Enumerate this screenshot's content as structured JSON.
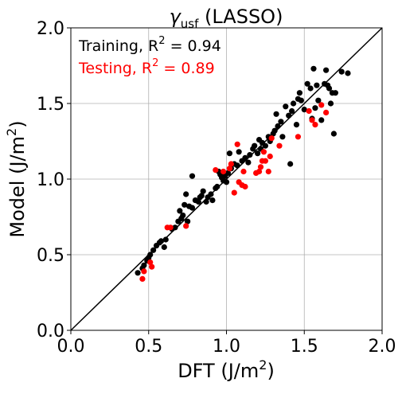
{
  "chart_data": {
    "type": "scatter",
    "title_main": "γ",
    "title_sub": "usf",
    "title_rest": " (LASSO)",
    "xlabel_main": "DFT (J/m",
    "xlabel_sup": "2",
    "xlabel_end": ")",
    "ylabel_main": "Model (J/m",
    "ylabel_sup": "2",
    "ylabel_end": ")",
    "xlim": [
      0.0,
      2.0
    ],
    "ylim": [
      0.0,
      2.0
    ],
    "xticks": [
      "0.0",
      "0.5",
      "1.0",
      "1.5",
      "2.0"
    ],
    "yticks": [
      "0.0",
      "0.5",
      "1.0",
      "1.5",
      "2.0"
    ],
    "grid": true,
    "legend_position": "top-left",
    "reference_line": "y=x",
    "series": [
      {
        "name_prefix": "Training, R",
        "name_sup": "2",
        "name_suffix": " = 0.94",
        "color": "#000000",
        "points": [
          [
            0.43,
            0.38
          ],
          [
            0.46,
            0.41
          ],
          [
            0.47,
            0.43
          ],
          [
            0.49,
            0.46
          ],
          [
            0.5,
            0.48
          ],
          [
            0.51,
            0.5
          ],
          [
            0.53,
            0.53
          ],
          [
            0.55,
            0.56
          ],
          [
            0.57,
            0.58
          ],
          [
            0.58,
            0.59
          ],
          [
            0.6,
            0.55
          ],
          [
            0.61,
            0.6
          ],
          [
            0.65,
            0.67
          ],
          [
            0.67,
            0.68
          ],
          [
            0.69,
            0.72
          ],
          [
            0.7,
            0.79
          ],
          [
            0.71,
            0.74
          ],
          [
            0.72,
            0.76
          ],
          [
            0.73,
            0.83
          ],
          [
            0.74,
            0.9
          ],
          [
            0.75,
            0.72
          ],
          [
            0.76,
            0.82
          ],
          [
            0.78,
            0.81
          ],
          [
            0.78,
            1.02
          ],
          [
            0.8,
            0.86
          ],
          [
            0.82,
            0.85
          ],
          [
            0.83,
            0.88
          ],
          [
            0.84,
            0.89
          ],
          [
            0.85,
            0.92
          ],
          [
            0.87,
            0.85
          ],
          [
            0.88,
            0.88
          ],
          [
            0.9,
            0.9
          ],
          [
            0.91,
            0.86
          ],
          [
            0.93,
            0.94
          ],
          [
            0.94,
            0.95
          ],
          [
            0.95,
            1.05
          ],
          [
            0.96,
            1.03
          ],
          [
            0.97,
            1.01
          ],
          [
            0.98,
            0.99
          ],
          [
            0.99,
            1.02
          ],
          [
            1.0,
            0.98
          ],
          [
            1.01,
            1.04
          ],
          [
            1.02,
            1.17
          ],
          [
            1.03,
            1.07
          ],
          [
            1.05,
            1.1
          ],
          [
            1.07,
            1.09
          ],
          [
            1.08,
            1.18
          ],
          [
            1.1,
            1.12
          ],
          [
            1.12,
            1.14
          ],
          [
            1.14,
            1.11
          ],
          [
            1.15,
            1.16
          ],
          [
            1.17,
            1.2
          ],
          [
            1.18,
            1.22
          ],
          [
            1.2,
            1.17
          ],
          [
            1.21,
            1.26
          ],
          [
            1.22,
            1.2
          ],
          [
            1.23,
            1.24
          ],
          [
            1.25,
            1.22
          ],
          [
            1.27,
            1.28
          ],
          [
            1.28,
            1.25
          ],
          [
            1.3,
            1.3
          ],
          [
            1.31,
            1.32
          ],
          [
            1.32,
            1.43
          ],
          [
            1.33,
            1.35
          ],
          [
            1.35,
            1.38
          ],
          [
            1.36,
            1.28
          ],
          [
            1.38,
            1.48
          ],
          [
            1.4,
            1.42
          ],
          [
            1.41,
            1.1
          ],
          [
            1.42,
            1.45
          ],
          [
            1.43,
            1.5
          ],
          [
            1.45,
            1.36
          ],
          [
            1.46,
            1.53
          ],
          [
            1.47,
            1.57
          ],
          [
            1.48,
            1.52
          ],
          [
            1.5,
            1.46
          ],
          [
            1.52,
            1.63
          ],
          [
            1.54,
            1.6
          ],
          [
            1.55,
            1.4
          ],
          [
            1.56,
            1.73
          ],
          [
            1.57,
            1.47
          ],
          [
            1.58,
            1.62
          ],
          [
            1.59,
            1.52
          ],
          [
            1.61,
            1.39
          ],
          [
            1.63,
            1.63
          ],
          [
            1.64,
            1.72
          ],
          [
            1.65,
            1.62
          ],
          [
            1.66,
            1.6
          ],
          [
            1.67,
            1.5
          ],
          [
            1.68,
            1.57
          ],
          [
            1.69,
            1.3
          ],
          [
            1.7,
            1.57
          ],
          [
            1.74,
            1.71
          ],
          [
            1.78,
            1.7
          ]
        ]
      },
      {
        "name_prefix": "Testing, R",
        "name_sup": "2",
        "name_suffix": " = 0.89",
        "color": "#ff0000",
        "points": [
          [
            0.46,
            0.34
          ],
          [
            0.47,
            0.39
          ],
          [
            0.51,
            0.45
          ],
          [
            0.52,
            0.42
          ],
          [
            0.62,
            0.68
          ],
          [
            0.64,
            0.68
          ],
          [
            0.74,
            0.69
          ],
          [
            0.93,
            1.06
          ],
          [
            0.98,
            1.05
          ],
          [
            1.02,
            1.07
          ],
          [
            1.03,
            1.1
          ],
          [
            1.05,
            0.91
          ],
          [
            1.07,
            1.23
          ],
          [
            1.08,
            0.98
          ],
          [
            1.1,
            0.96
          ],
          [
            1.11,
            1.05
          ],
          [
            1.12,
            0.95
          ],
          [
            1.19,
            1.04
          ],
          [
            1.21,
            1.05
          ],
          [
            1.22,
            1.08
          ],
          [
            1.23,
            1.12
          ],
          [
            1.24,
            1.18
          ],
          [
            1.25,
            1.12
          ],
          [
            1.27,
            1.05
          ],
          [
            1.28,
            1.15
          ],
          [
            1.29,
            1.27
          ],
          [
            1.34,
            1.22
          ],
          [
            1.46,
            1.28
          ],
          [
            1.53,
            1.45
          ],
          [
            1.55,
            1.39
          ],
          [
            1.57,
            1.36
          ],
          [
            1.61,
            1.49
          ],
          [
            1.64,
            1.44
          ]
        ]
      }
    ]
  }
}
